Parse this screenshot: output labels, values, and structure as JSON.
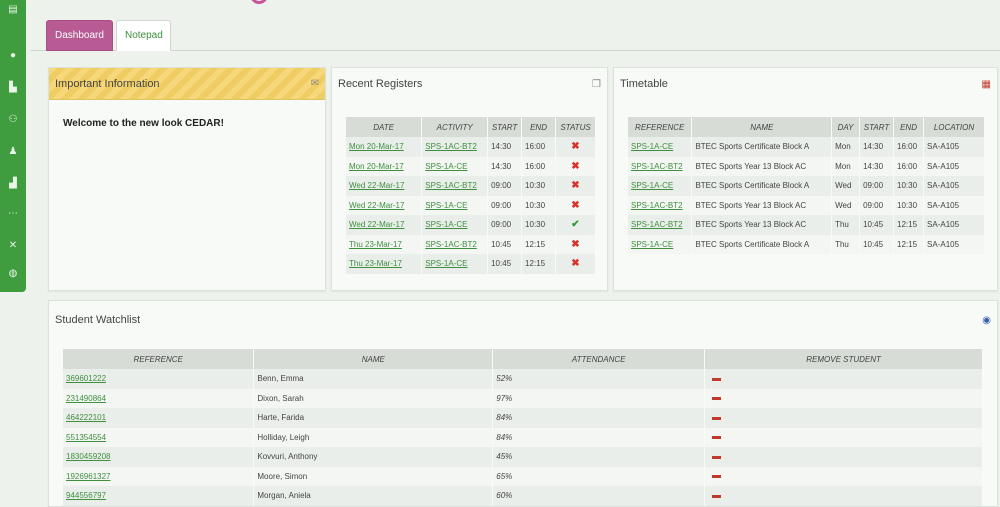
{
  "tabs": {
    "dashboard": "Dashboard",
    "notepad": "Notepad"
  },
  "info": {
    "title": "Important Information",
    "message": "Welcome to the new look CEDAR!"
  },
  "registers": {
    "title": "Recent Registers",
    "headers": [
      "DATE",
      "ACTIVITY",
      "START",
      "END",
      "STATUS"
    ],
    "rows": [
      {
        "date": "Mon 20-Mar-17",
        "activity": "SPS-1AC-BT2",
        "start": "14:30",
        "end": "16:00",
        "status": "incomplete"
      },
      {
        "date": "Mon 20-Mar-17",
        "activity": "SPS-1A-CE",
        "start": "14:30",
        "end": "16:00",
        "status": "incomplete"
      },
      {
        "date": "Wed 22-Mar-17",
        "activity": "SPS-1AC-BT2",
        "start": "09:00",
        "end": "10:30",
        "status": "incomplete"
      },
      {
        "date": "Wed 22-Mar-17",
        "activity": "SPS-1A-CE",
        "start": "09:00",
        "end": "10:30",
        "status": "incomplete"
      },
      {
        "date": "Wed 22-Mar-17",
        "activity": "SPS-1A-CE",
        "start": "09:00",
        "end": "10:30",
        "status": "complete"
      },
      {
        "date": "Thu 23-Mar-17",
        "activity": "SPS-1AC-BT2",
        "start": "10:45",
        "end": "12:15",
        "status": "incomplete"
      },
      {
        "date": "Thu 23-Mar-17",
        "activity": "SPS-1A-CE",
        "start": "10:45",
        "end": "12:15",
        "status": "incomplete"
      }
    ]
  },
  "timetable": {
    "title": "Timetable",
    "headers": [
      "REFERENCE",
      "NAME",
      "DAY",
      "START",
      "END",
      "LOCATION"
    ],
    "rows": [
      {
        "reference": "SPS-1A-CE",
        "name": "BTEC Sports Certificate Block A",
        "day": "Mon",
        "start": "14:30",
        "end": "16:00",
        "location": "SA-A105"
      },
      {
        "reference": "SPS-1AC-BT2",
        "name": "BTEC Sports Year 13 Block AC",
        "day": "Mon",
        "start": "14:30",
        "end": "16:00",
        "location": "SA-A105"
      },
      {
        "reference": "SPS-1A-CE",
        "name": "BTEC Sports Certificate Block A",
        "day": "Wed",
        "start": "09:00",
        "end": "10:30",
        "location": "SA-A105"
      },
      {
        "reference": "SPS-1AC-BT2",
        "name": "BTEC Sports Year 13 Block AC",
        "day": "Wed",
        "start": "09:00",
        "end": "10:30",
        "location": "SA-A105"
      },
      {
        "reference": "SPS-1AC-BT2",
        "name": "BTEC Sports Year 13 Block AC",
        "day": "Thu",
        "start": "10:45",
        "end": "12:15",
        "location": "SA-A105"
      },
      {
        "reference": "SPS-1A-CE",
        "name": "BTEC Sports Certificate Block A",
        "day": "Thu",
        "start": "10:45",
        "end": "12:15",
        "location": "SA-A105"
      }
    ]
  },
  "watchlist": {
    "title": "Student Watchlist",
    "headers": [
      "REFERENCE",
      "NAME",
      "ATTENDANCE",
      "REMOVE STUDENT"
    ],
    "rows": [
      {
        "reference": "369601222",
        "name": "Benn, Emma",
        "attendance": "52%"
      },
      {
        "reference": "231490864",
        "name": "Dixon, Sarah",
        "attendance": "97%"
      },
      {
        "reference": "464222101",
        "name": "Harte, Farida",
        "attendance": "84%"
      },
      {
        "reference": "551354554",
        "name": "Holliday, Leigh",
        "attendance": "84%"
      },
      {
        "reference": "1830459208",
        "name": "Kovvuri, Anthony",
        "attendance": "45%"
      },
      {
        "reference": "1926961327",
        "name": "Moore, Simon",
        "attendance": "65%"
      },
      {
        "reference": "944556797",
        "name": "Morgan, Aniela",
        "attendance": "60%"
      }
    ]
  },
  "sidebar": {
    "icons": [
      "grid-icon",
      "user-icon",
      "org-icon",
      "users-icon",
      "user-lock-icon",
      "chart-icon",
      "network-icon",
      "tools-icon",
      "globe-icon"
    ]
  },
  "colors": {
    "sidebar": "#3f9d3f",
    "tab_active": "#b85a94",
    "link": "#3f8f3f",
    "status_bad": "#d9302a",
    "status_good": "#2f9c2f",
    "info_header": "#f6d77a"
  }
}
